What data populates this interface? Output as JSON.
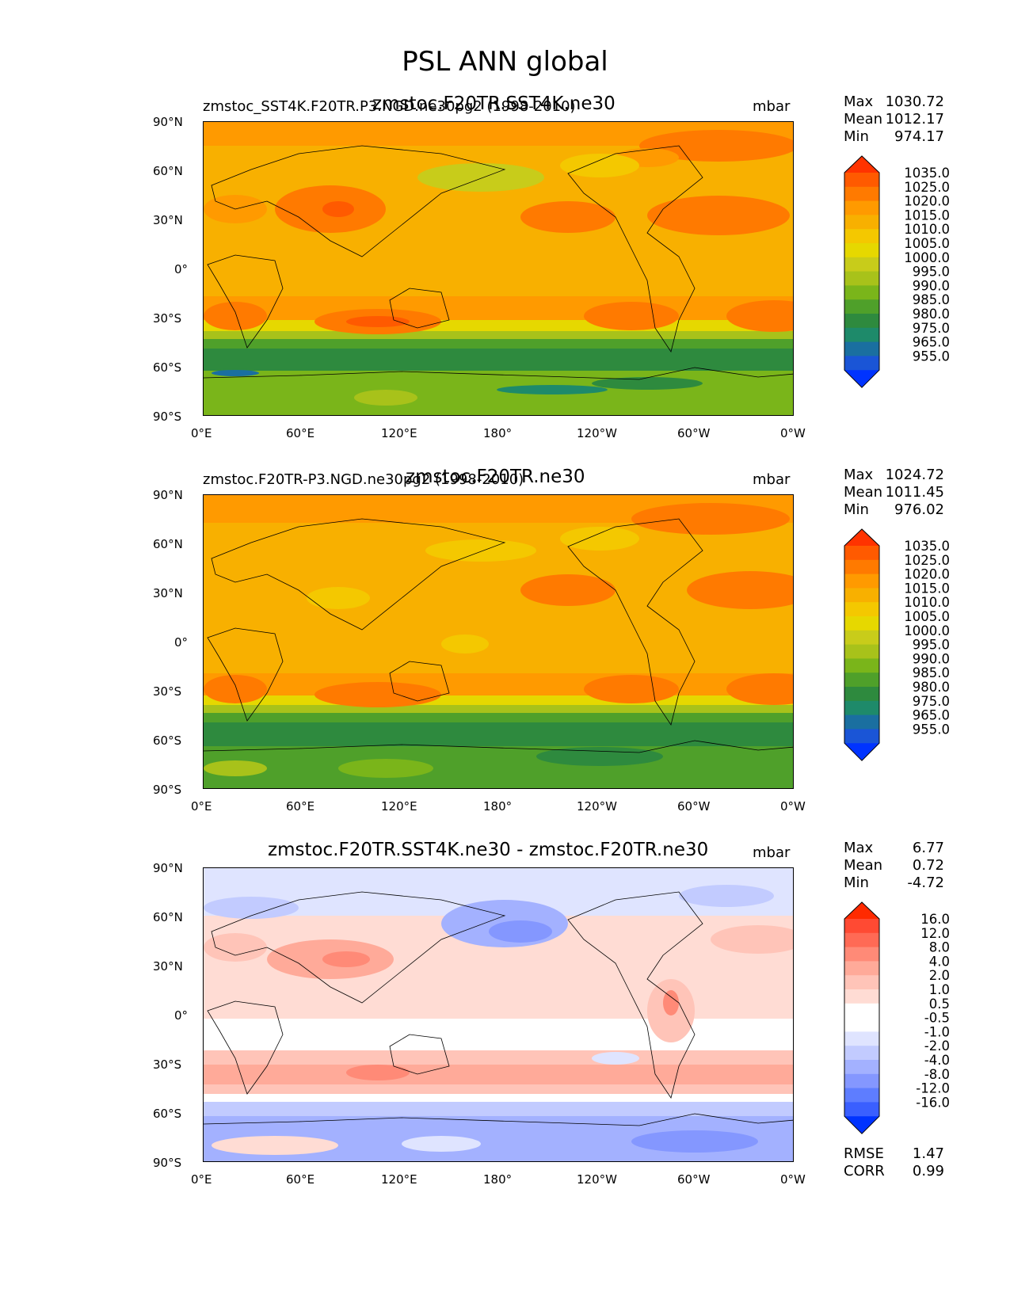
{
  "figure": {
    "title": "PSL ANN global"
  },
  "chart_data": [
    {
      "type": "heatmap",
      "subtitle_left": "zmstoc_SST4K.F20TR.P3.NGD.ne30pg2 (1998-2010)",
      "title": "zmstoc.F20TR.SST4K.ne30",
      "units": "mbar",
      "x_ticks": [
        "0°E",
        "60°E",
        "120°E",
        "180°",
        "120°W",
        "60°W",
        "0°W"
      ],
      "y_ticks": [
        "90°N",
        "60°N",
        "30°N",
        "0°",
        "30°S",
        "60°S",
        "90°S"
      ],
      "stats": {
        "max_label": "Max",
        "max": "1030.72",
        "mean_label": "Mean",
        "mean": "1012.17",
        "min_label": "Min",
        "min": "974.17"
      },
      "levels": [
        "1035.0",
        "1025.0",
        "1020.0",
        "1015.0",
        "1010.0",
        "1005.0",
        "1000.0",
        "995.0",
        "990.0",
        "985.0",
        "980.0",
        "975.0",
        "965.0",
        "955.0"
      ],
      "colors": [
        "#ff3300",
        "#ff5a00",
        "#ff7a00",
        "#ff9a00",
        "#f8b000",
        "#f4c800",
        "#e6d800",
        "#c8cc1a",
        "#a8c21a",
        "#7ab51a",
        "#4fa02a",
        "#2e8a3e",
        "#1e8a6a",
        "#1a6fa0",
        "#1a55d6",
        "#0033ff"
      ]
    },
    {
      "type": "heatmap",
      "subtitle_left": "zmstoc.F20TR-P3.NGD.ne30pg2 (1998-2010)",
      "title": "zmstoc.F20TR.ne30",
      "units": "mbar",
      "x_ticks": [
        "0°E",
        "60°E",
        "120°E",
        "180°",
        "120°W",
        "60°W",
        "0°W"
      ],
      "y_ticks": [
        "90°N",
        "60°N",
        "30°N",
        "0°",
        "30°S",
        "60°S",
        "90°S"
      ],
      "stats": {
        "max_label": "Max",
        "max": "1024.72",
        "mean_label": "Mean",
        "mean": "1011.45",
        "min_label": "Min",
        "min": "976.02"
      },
      "levels": [
        "1035.0",
        "1025.0",
        "1020.0",
        "1015.0",
        "1010.0",
        "1005.0",
        "1000.0",
        "995.0",
        "990.0",
        "985.0",
        "980.0",
        "975.0",
        "965.0",
        "955.0"
      ],
      "colors": [
        "#ff3300",
        "#ff5a00",
        "#ff7a00",
        "#ff9a00",
        "#f8b000",
        "#f4c800",
        "#e6d800",
        "#c8cc1a",
        "#a8c21a",
        "#7ab51a",
        "#4fa02a",
        "#2e8a3e",
        "#1e8a6a",
        "#1a6fa0",
        "#1a55d6",
        "#0033ff"
      ]
    },
    {
      "type": "heatmap",
      "subtitle_left": "",
      "title": "zmstoc.F20TR.SST4K.ne30 - zmstoc.F20TR.ne30",
      "units": "mbar",
      "x_ticks": [
        "0°E",
        "60°E",
        "120°E",
        "180°",
        "120°W",
        "60°W",
        "0°W"
      ],
      "y_ticks": [
        "90°N",
        "60°N",
        "30°N",
        "0°",
        "30°S",
        "60°S",
        "90°S"
      ],
      "stats": {
        "max_label": "Max",
        "max": "6.77",
        "mean_label": "Mean",
        "mean": "0.72",
        "min_label": "Min",
        "min": "-4.72"
      },
      "levels": [
        "16.0",
        "12.0",
        "8.0",
        "4.0",
        "2.0",
        "1.0",
        "0.5",
        "-0.5",
        "-1.0",
        "-2.0",
        "-4.0",
        "-8.0",
        "-12.0",
        "-16.0"
      ],
      "colors": [
        "#ff2a00",
        "#ff4a33",
        "#ff6a55",
        "#ff8a77",
        "#ffaa99",
        "#ffc4b8",
        "#ffdcd4",
        "#ffffff",
        "#ffffff",
        "#dfe4ff",
        "#c2cbff",
        "#a3b1ff",
        "#8497ff",
        "#5e7dff",
        "#3a5fff",
        "#0033ff"
      ],
      "extra": {
        "rmse_label": "RMSE",
        "rmse": "1.47",
        "corr_label": "CORR",
        "corr": "0.99"
      }
    }
  ]
}
